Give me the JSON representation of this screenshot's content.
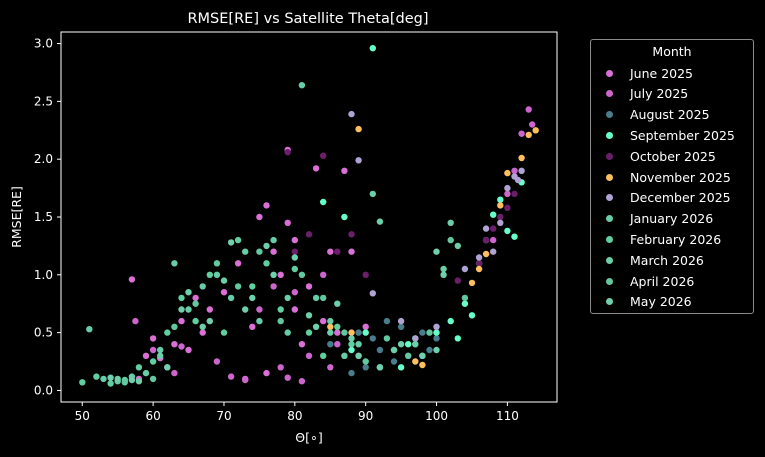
{
  "chart_data": {
    "type": "scatter",
    "title": "RMSE[RE] vs Satellite Theta[deg]",
    "xlabel": "Θ[∘]",
    "ylabel": "RMSE[RE]",
    "xlim": [
      47,
      117
    ],
    "ylim": [
      -0.1,
      3.1
    ],
    "xticks": [
      50,
      60,
      70,
      80,
      90,
      100,
      110
    ],
    "yticks": [
      0.0,
      0.5,
      1.0,
      1.5,
      2.0,
      2.5,
      3.0
    ],
    "xtick_labels": [
      "50",
      "60",
      "70",
      "80",
      "90",
      "100",
      "110"
    ],
    "ytick_labels": [
      "0.0",
      "0.5",
      "1.0",
      "1.5",
      "2.0",
      "2.5",
      "3.0"
    ],
    "grid": false,
    "legend": {
      "title": "Month",
      "placement": "outside-right"
    },
    "series": [
      {
        "name": "June 2025",
        "color": "#da70d6",
        "points": [
          [
            57,
            0.96
          ],
          [
            58,
            0.1
          ],
          [
            59,
            0.3
          ],
          [
            60,
            0.45
          ],
          [
            61,
            0.28
          ],
          [
            62,
            0.2
          ],
          [
            63,
            0.4
          ],
          [
            64,
            0.6
          ],
          [
            65,
            0.35
          ],
          [
            66,
            0.8
          ],
          [
            67,
            0.5
          ],
          [
            68,
            0.7
          ],
          [
            70,
            0.85
          ],
          [
            72,
            1.1
          ],
          [
            73,
            0.1
          ],
          [
            74,
            0.55
          ],
          [
            75,
            1.5
          ],
          [
            76,
            0.15
          ],
          [
            77,
            1.2
          ],
          [
            78,
            1.0
          ],
          [
            79,
            1.45
          ],
          [
            80,
            1.3
          ],
          [
            81,
            0.4
          ],
          [
            82,
            0.9
          ],
          [
            83,
            1.92
          ],
          [
            84,
            0.6
          ],
          [
            85,
            1.2
          ],
          [
            86,
            0.5
          ],
          [
            87,
            1.9
          ],
          [
            88,
            1.2
          ],
          [
            89,
            0.3
          ],
          [
            79,
            2.08
          ],
          [
            80,
            0.7
          ],
          [
            76,
            1.6
          ],
          [
            90,
            0.55
          ]
        ]
      },
      {
        "name": "July 2025",
        "color": "#cc66cc",
        "points": [
          [
            57.5,
            0.6
          ],
          [
            60,
            0.35
          ],
          [
            63,
            0.15
          ],
          [
            64,
            0.38
          ],
          [
            69,
            0.25
          ],
          [
            71,
            0.12
          ],
          [
            73,
            0.09
          ],
          [
            75,
            0.7
          ],
          [
            77,
            0.9
          ],
          [
            78,
            0.2
          ],
          [
            79,
            0.11
          ],
          [
            80,
            0.85
          ],
          [
            81,
            0.08
          ],
          [
            82,
            0.3
          ],
          [
            84,
            1.0
          ],
          [
            85,
            0.2
          ],
          [
            86,
            0.4
          ],
          [
            108,
            1.3
          ],
          [
            110,
            1.7
          ],
          [
            111,
            1.9
          ],
          [
            112,
            2.22
          ],
          [
            113,
            2.43
          ],
          [
            113.5,
            2.3
          ]
        ]
      },
      {
        "name": "August 2025",
        "color": "#4a7d8c",
        "points": [
          [
            85,
            0.4
          ],
          [
            87,
            0.3
          ],
          [
            89,
            0.5
          ],
          [
            90,
            0.2
          ],
          [
            91,
            0.45
          ],
          [
            92,
            0.35
          ],
          [
            93,
            0.6
          ],
          [
            94,
            0.25
          ],
          [
            95,
            0.55
          ],
          [
            96,
            0.3
          ],
          [
            97,
            0.4
          ],
          [
            98,
            0.5
          ],
          [
            99,
            0.35
          ],
          [
            100,
            0.45
          ],
          [
            88,
            0.15
          ],
          [
            92,
            0.2
          ]
        ]
      },
      {
        "name": "September 2025",
        "color": "#66ffcc",
        "points": [
          [
            84,
            1.63
          ],
          [
            87,
            1.5
          ],
          [
            88,
            0.35
          ],
          [
            90,
            0.5
          ],
          [
            91,
            2.96
          ],
          [
            92,
            0.2
          ],
          [
            94,
            0.35
          ],
          [
            96,
            0.4
          ],
          [
            98,
            0.3
          ],
          [
            100,
            0.5
          ],
          [
            102,
            0.6
          ],
          [
            103,
            0.45
          ],
          [
            104,
            0.75
          ],
          [
            105,
            0.65
          ],
          [
            106,
            1.1
          ],
          [
            107,
            1.3
          ],
          [
            108,
            1.52
          ],
          [
            109,
            1.65
          ],
          [
            110,
            1.38
          ],
          [
            111,
            1.33
          ],
          [
            112,
            1.8
          ],
          [
            95,
            0.2
          ],
          [
            97,
            0.45
          ]
        ]
      },
      {
        "name": "October 2025",
        "color": "#6b1f6b",
        "points": [
          [
            79,
            2.06
          ],
          [
            80,
            1.2
          ],
          [
            82,
            1.35
          ],
          [
            84,
            2.03
          ],
          [
            86,
            1.2
          ],
          [
            88,
            1.35
          ],
          [
            90,
            1.0
          ],
          [
            103,
            0.95
          ],
          [
            106,
            1.1
          ],
          [
            107,
            1.3
          ],
          [
            108,
            1.4
          ],
          [
            109,
            1.5
          ],
          [
            110,
            1.58
          ],
          [
            111,
            1.7
          ]
        ]
      },
      {
        "name": "November 2025",
        "color": "#ffbf5e",
        "points": [
          [
            85,
            0.55
          ],
          [
            88,
            0.5
          ],
          [
            89,
            2.26
          ],
          [
            97,
            0.25
          ],
          [
            98,
            0.22
          ],
          [
            105,
            0.93
          ],
          [
            106,
            1.05
          ],
          [
            107,
            1.18
          ],
          [
            109,
            1.6
          ],
          [
            110,
            1.88
          ],
          [
            112,
            2.01
          ],
          [
            113,
            2.21
          ],
          [
            114,
            2.25
          ]
        ]
      },
      {
        "name": "December 2025",
        "color": "#b0a3d4",
        "points": [
          [
            88,
            2.39
          ],
          [
            89,
            1.99
          ],
          [
            91,
            0.84
          ],
          [
            95,
            0.6
          ],
          [
            97,
            0.45
          ],
          [
            100,
            0.55
          ],
          [
            104,
            1.05
          ],
          [
            106,
            1.15
          ],
          [
            107,
            1.4
          ],
          [
            108,
            1.2
          ],
          [
            109,
            1.45
          ],
          [
            110,
            1.75
          ],
          [
            111,
            1.85
          ],
          [
            112,
            1.9
          ],
          [
            111.5,
            1.82
          ]
        ]
      },
      {
        "name": "January 2026",
        "color": "#66ccaa",
        "points": [
          [
            51,
            0.53
          ],
          [
            53,
            0.1
          ],
          [
            55,
            0.08
          ],
          [
            57,
            0.12
          ],
          [
            59,
            0.15
          ],
          [
            61,
            0.35
          ],
          [
            63,
            1.1
          ],
          [
            65,
            0.7
          ],
          [
            67,
            0.9
          ],
          [
            69,
            1.0
          ],
          [
            71,
            0.8
          ],
          [
            73,
            1.2
          ],
          [
            75,
            0.6
          ],
          [
            77,
            1.3
          ],
          [
            79,
            0.5
          ],
          [
            81,
            2.64
          ],
          [
            83,
            0.8
          ],
          [
            85,
            0.6
          ],
          [
            87,
            0.3
          ],
          [
            89,
            0.4
          ]
        ]
      },
      {
        "name": "February 2026",
        "color": "#5fcf9f",
        "points": [
          [
            50,
            0.07
          ],
          [
            52,
            0.12
          ],
          [
            54,
            0.06
          ],
          [
            56,
            0.09
          ],
          [
            58,
            0.2
          ],
          [
            60,
            0.25
          ],
          [
            62,
            0.5
          ],
          [
            64,
            0.8
          ],
          [
            66,
            0.6
          ],
          [
            68,
            1.0
          ],
          [
            70,
            0.5
          ],
          [
            72,
            1.3
          ],
          [
            74,
            0.9
          ],
          [
            76,
            1.1
          ],
          [
            78,
            0.7
          ],
          [
            80,
            1.05
          ],
          [
            82,
            0.5
          ],
          [
            84,
            0.3
          ],
          [
            86,
            0.55
          ],
          [
            88,
            0.4
          ]
        ]
      },
      {
        "name": "March 2026",
        "color": "#6ccfa9",
        "points": [
          [
            55,
            0.1
          ],
          [
            58,
            0.08
          ],
          [
            61,
            0.3
          ],
          [
            64,
            0.7
          ],
          [
            67,
            0.55
          ],
          [
            70,
            0.95
          ],
          [
            73,
            0.7
          ],
          [
            76,
            1.25
          ],
          [
            79,
            0.8
          ],
          [
            82,
            0.65
          ],
          [
            85,
            0.5
          ],
          [
            88,
            0.45
          ],
          [
            91,
            1.7
          ],
          [
            92,
            1.46
          ],
          [
            94,
            0.35
          ],
          [
            97,
            0.4
          ],
          [
            100,
            0.35
          ],
          [
            101,
            1.05
          ],
          [
            102,
            1.45
          ],
          [
            103,
            1.25
          ]
        ]
      },
      {
        "name": "April 2026",
        "color": "#63c8a0",
        "points": [
          [
            56,
            0.07
          ],
          [
            60,
            0.1
          ],
          [
            63,
            0.55
          ],
          [
            66,
            0.75
          ],
          [
            69,
            1.1
          ],
          [
            72,
            0.9
          ],
          [
            75,
            1.2
          ],
          [
            78,
            0.6
          ],
          [
            81,
            1.0
          ],
          [
            84,
            0.8
          ],
          [
            87,
            0.5
          ],
          [
            90,
            0.25
          ],
          [
            93,
            0.45
          ],
          [
            96,
            0.3
          ],
          [
            99,
            0.5
          ],
          [
            102,
            1.3
          ],
          [
            104,
            0.8
          ]
        ]
      },
      {
        "name": "May 2026",
        "color": "#70cfae",
        "points": [
          [
            54,
            0.11
          ],
          [
            57,
            0.09
          ],
          [
            62,
            0.2
          ],
          [
            65,
            0.85
          ],
          [
            68,
            0.6
          ],
          [
            71,
            1.28
          ],
          [
            74,
            0.8
          ],
          [
            77,
            1.0
          ],
          [
            80,
            1.15
          ],
          [
            83,
            0.55
          ],
          [
            86,
            0.75
          ],
          [
            89,
            0.3
          ],
          [
            92,
            0.2
          ],
          [
            95,
            0.4
          ],
          [
            98,
            0.3
          ],
          [
            100,
            1.2
          ],
          [
            101,
            1.0
          ]
        ]
      }
    ]
  }
}
